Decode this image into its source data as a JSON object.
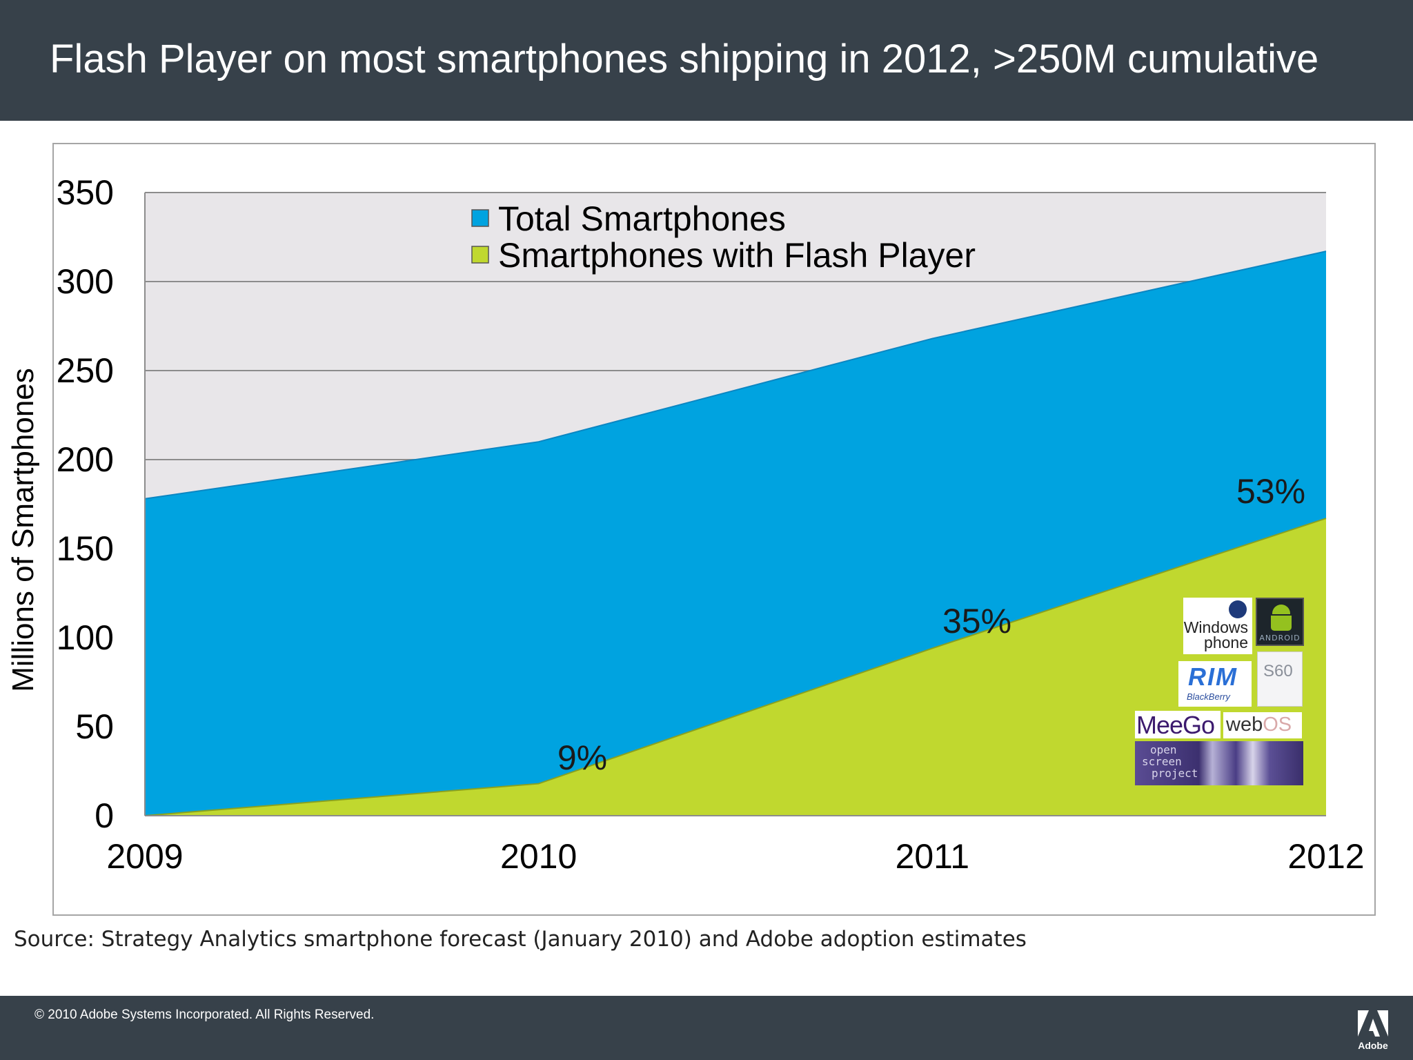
{
  "slide": {
    "title": "Flash Player on most smartphones shipping in 2012, >250M cumulative",
    "source": "Source: Strategy Analytics smartphone forecast (January 2010) and Adobe adoption estimates",
    "copyright": "© 2010 Adobe Systems Incorporated.  All Rights Reserved.",
    "brand_logo_text": "Adobe"
  },
  "chart_data": {
    "type": "area",
    "ylabel": "Millions of Smartphones",
    "xlabel": "",
    "ylim": [
      0,
      350
    ],
    "yticks": [
      0,
      50,
      100,
      150,
      200,
      250,
      300,
      350
    ],
    "categories": [
      "2009",
      "2010",
      "2011",
      "2012"
    ],
    "series": [
      {
        "name": "Total Smartphones",
        "color": "#00a3e0",
        "values": [
          178,
          210,
          268,
          317
        ]
      },
      {
        "name": "Smartphones with Flash Player",
        "color": "#c0d82f",
        "values": [
          0,
          18,
          94,
          167
        ]
      }
    ],
    "annotations": [
      {
        "text": "9%",
        "category": "2010"
      },
      {
        "text": "35%",
        "category": "2011"
      },
      {
        "text": "53%",
        "category": "2012"
      }
    ],
    "grid": true,
    "legend_position": "top-center",
    "plot_background": "#e8e6e9"
  },
  "platform_logos": {
    "windows_phone": [
      "Windows",
      "phone"
    ],
    "android": "ANDROID",
    "rim": "RIM",
    "blackberry": "BlackBerry",
    "s60": "S60",
    "meego": "MeeGo",
    "webos": [
      "web",
      "OS"
    ],
    "open_screen": [
      "open",
      "screen",
      "project"
    ]
  }
}
